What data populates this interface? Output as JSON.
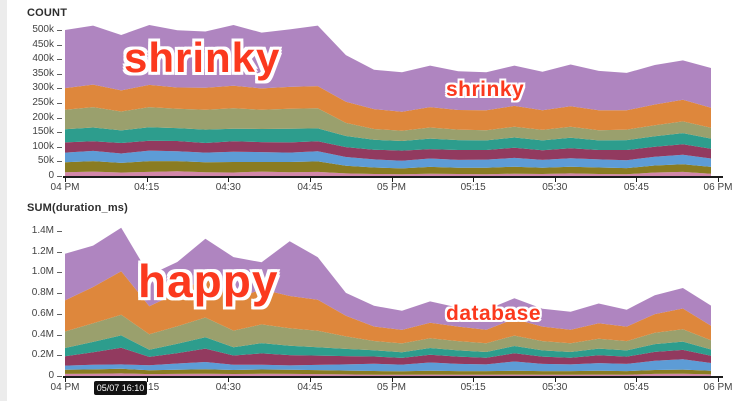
{
  "annotations": {
    "color": "#fb391e",
    "top_big": "shrinky",
    "top_small": "shrinky",
    "bottom_big": "happy",
    "bottom_small": "database"
  },
  "tooltip": {
    "text": "05/07 16:10",
    "bg": "#121212",
    "fg": "#ffffff"
  },
  "chart_data": [
    {
      "type": "area",
      "stacked": true,
      "title": "COUNT",
      "xlabel": "",
      "ylabel": "COUNT",
      "x_range": [
        "4:00 PM",
        "6:00 PM"
      ],
      "x_tick_labels": [
        "04 PM",
        "04:15",
        "04:30",
        "04:45",
        "05 PM",
        "05:15",
        "05:30",
        "05:45",
        "06 PM"
      ],
      "y_tick_labels": [
        "0",
        "50k",
        "100k",
        "150k",
        "200k",
        "250k",
        "300k",
        "350k",
        "400k",
        "450k",
        "500k"
      ],
      "y_tick_interval": 50000,
      "ylim": [
        0,
        500000
      ],
      "grid": false,
      "legend": "none",
      "x_points_minutes_step": 5,
      "series": [
        {
          "name": "pink",
          "color": "#d287a9",
          "values": [
            13000,
            15000,
            12000,
            14000,
            16000,
            13000,
            12000,
            15000,
            13000,
            14000,
            9000,
            7000,
            6000,
            8000,
            7000,
            6000,
            8000,
            7000,
            9000,
            7000,
            6000,
            12000,
            14000,
            8000
          ]
        },
        {
          "name": "olive",
          "color": "#8a7c22",
          "values": [
            34000,
            36000,
            33000,
            37000,
            35000,
            34000,
            36000,
            33000,
            35000,
            36000,
            26000,
            22000,
            20000,
            23000,
            21000,
            22000,
            24000,
            21000,
            23000,
            22000,
            21000,
            24000,
            26000,
            23000
          ]
        },
        {
          "name": "blue",
          "color": "#5d9cd6",
          "values": [
            33000,
            35000,
            32000,
            36000,
            34000,
            33000,
            35000,
            34000,
            32000,
            35000,
            30000,
            28000,
            26000,
            29000,
            27000,
            28000,
            30000,
            27000,
            29000,
            28000,
            27000,
            30000,
            33000,
            29000
          ]
        },
        {
          "name": "maroon",
          "color": "#923a5f",
          "values": [
            35000,
            33000,
            36000,
            34000,
            35000,
            33000,
            36000,
            34000,
            35000,
            34000,
            34000,
            33000,
            35000,
            32000,
            34000,
            33000,
            35000,
            33000,
            34000,
            32000,
            35000,
            34000,
            36000,
            33000
          ]
        },
        {
          "name": "teal",
          "color": "#2d9d8d",
          "values": [
            45000,
            47000,
            43000,
            46000,
            44000,
            46000,
            43000,
            45000,
            47000,
            44000,
            38000,
            34000,
            33000,
            36000,
            34000,
            33000,
            35000,
            34000,
            36000,
            33000,
            34000,
            36000,
            38000,
            35000
          ]
        },
        {
          "name": "sage",
          "color": "#9aa06d",
          "values": [
            67000,
            70000,
            65000,
            69000,
            66000,
            68000,
            70000,
            66000,
            68000,
            69000,
            45000,
            37000,
            35000,
            38000,
            36000,
            35000,
            37000,
            36000,
            38000,
            35000,
            36000,
            38000,
            40000,
            37000
          ]
        },
        {
          "name": "orange",
          "color": "#de873c",
          "values": [
            74000,
            77000,
            72000,
            76000,
            73000,
            75000,
            77000,
            73000,
            75000,
            76000,
            72000,
            68000,
            65000,
            70000,
            67000,
            68000,
            71000,
            67000,
            70000,
            68000,
            66000,
            71000,
            74000,
            69000
          ]
        },
        {
          "name": "purple",
          "color": "#af85c0",
          "values": [
            199000,
            202000,
            190000,
            205000,
            196000,
            193000,
            208000,
            191000,
            197000,
            207000,
            160000,
            135000,
            135000,
            142000,
            133000,
            130000,
            138000,
            132000,
            143000,
            135000,
            128000,
            135000,
            135000,
            136000
          ]
        }
      ]
    },
    {
      "type": "area",
      "stacked": true,
      "title": "SUM(duration_ms)",
      "xlabel": "",
      "ylabel": "SUM(duration_ms)",
      "x_range": [
        "4:00 PM",
        "6:00 PM"
      ],
      "x_tick_labels": [
        "04 PM",
        "04:15",
        "04:30",
        "04:45",
        "05 PM",
        "05:15",
        "05:30",
        "05:45",
        "06 PM"
      ],
      "y_tick_labels": [
        "0",
        "0.2M",
        "0.4M",
        "0.6M",
        "0.8M",
        "1.0M",
        "1.2M",
        "1.4M"
      ],
      "y_tick_interval": 200000,
      "ylim": [
        0,
        1400000
      ],
      "grid": false,
      "legend": "none",
      "x_points_minutes_step": 5,
      "series": [
        {
          "name": "pink",
          "color": "#d287a9",
          "values": [
            20000,
            22000,
            25000,
            18000,
            20000,
            22000,
            19000,
            21000,
            20000,
            18000,
            15000,
            13000,
            12000,
            14000,
            13000,
            12000,
            14000,
            13000,
            12000,
            14000,
            13000,
            20000,
            22000,
            15000
          ]
        },
        {
          "name": "olive",
          "color": "#8a7c22",
          "values": [
            40000,
            42000,
            45000,
            38000,
            41000,
            43000,
            39000,
            42000,
            40000,
            39000,
            37000,
            35000,
            33000,
            36000,
            34000,
            35000,
            36000,
            34000,
            35000,
            36000,
            34000,
            38000,
            40000,
            36000
          ]
        },
        {
          "name": "blue",
          "color": "#5d9cd6",
          "values": [
            40000,
            45000,
            42000,
            48000,
            60000,
            70000,
            50000,
            45000,
            42000,
            50000,
            60000,
            70000,
            65000,
            80000,
            70000,
            65000,
            90000,
            70000,
            65000,
            75000,
            70000,
            90000,
            100000,
            75000
          ]
        },
        {
          "name": "maroon",
          "color": "#923a5f",
          "values": [
            90000,
            120000,
            160000,
            80000,
            100000,
            130000,
            90000,
            110000,
            100000,
            90000,
            80000,
            70000,
            65000,
            75000,
            70000,
            65000,
            80000,
            70000,
            65000,
            75000,
            70000,
            85000,
            90000,
            70000
          ]
        },
        {
          "name": "teal",
          "color": "#2d9d8d",
          "values": [
            80000,
            100000,
            120000,
            70000,
            90000,
            110000,
            80000,
            100000,
            90000,
            80000,
            70000,
            60000,
            55000,
            65000,
            60000,
            55000,
            70000,
            60000,
            55000,
            65000,
            60000,
            75000,
            80000,
            60000
          ]
        },
        {
          "name": "sage",
          "color": "#9aa06d",
          "values": [
            160000,
            180000,
            200000,
            150000,
            170000,
            190000,
            160000,
            180000,
            170000,
            160000,
            120000,
            90000,
            85000,
            95000,
            90000,
            85000,
            100000,
            90000,
            85000,
            95000,
            90000,
            110000,
            120000,
            90000
          ]
        },
        {
          "name": "orange",
          "color": "#de873c",
          "values": [
            300000,
            350000,
            420000,
            270000,
            320000,
            380000,
            300000,
            340000,
            310000,
            300000,
            200000,
            140000,
            130000,
            150000,
            140000,
            130000,
            160000,
            140000,
            130000,
            150000,
            140000,
            180000,
            200000,
            140000
          ]
        },
        {
          "name": "purple",
          "color": "#af85c0",
          "values": [
            450000,
            400000,
            420000,
            300000,
            300000,
            380000,
            410000,
            260000,
            530000,
            410000,
            220000,
            200000,
            185000,
            205000,
            183000,
            193000,
            200000,
            173000,
            173000,
            190000,
            163000,
            182000,
            198000,
            194000
          ]
        }
      ]
    }
  ]
}
